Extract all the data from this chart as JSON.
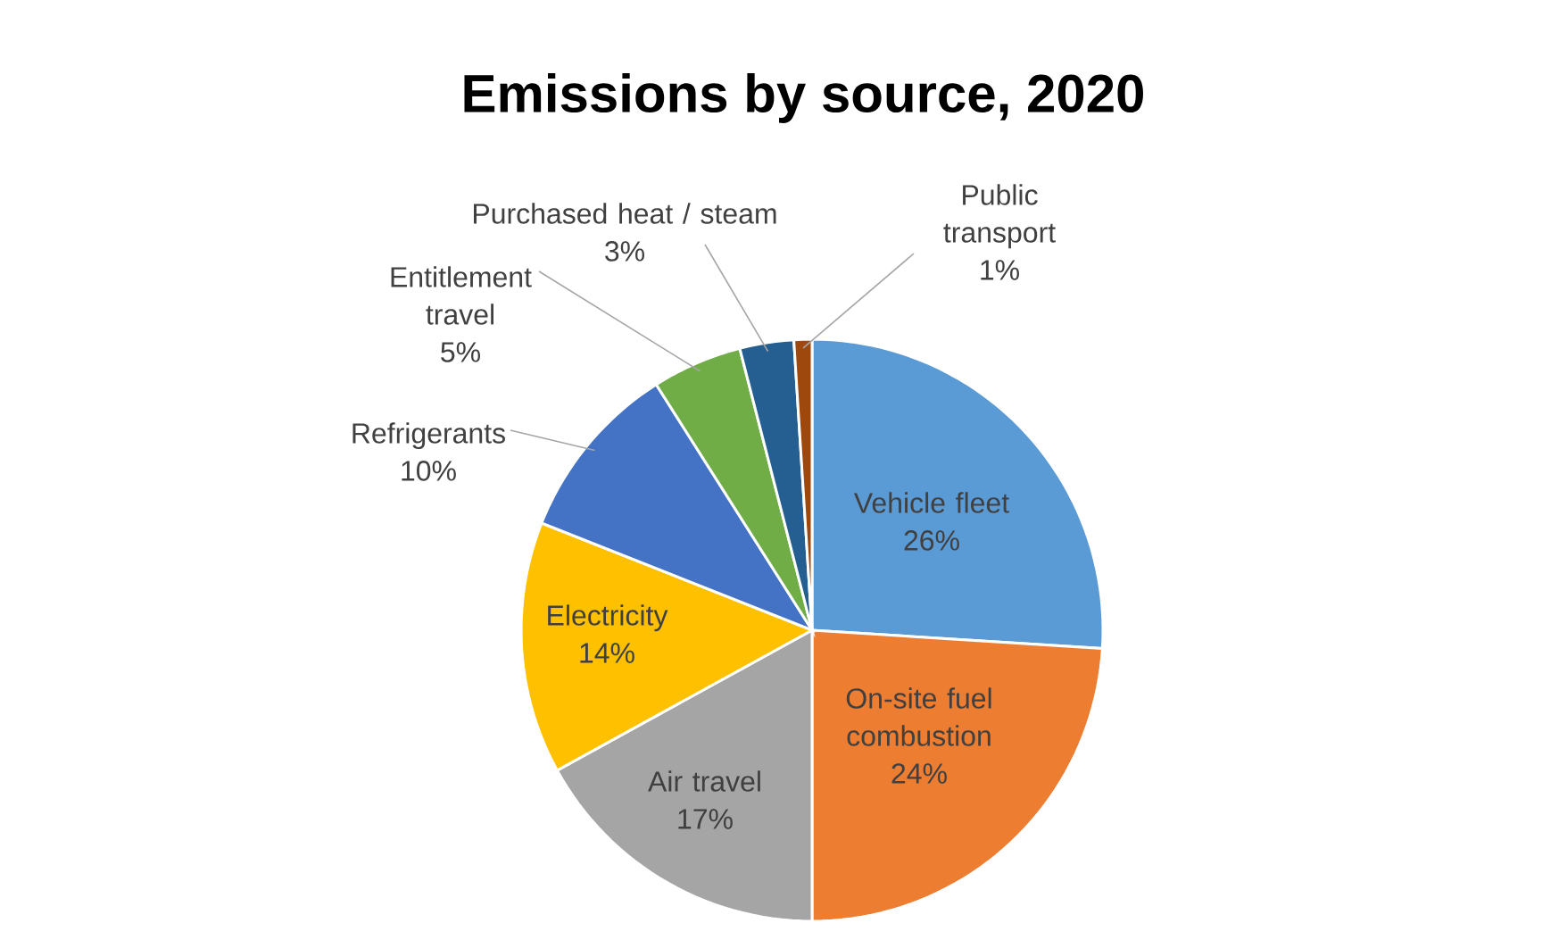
{
  "chart_data": {
    "type": "pie",
    "title": "Emissions by source, 2020",
    "categories": [
      "Vehicle fleet",
      "On-site fuel combustion",
      "Air travel",
      "Electricity",
      "Refrigerants",
      "Entitlement travel",
      "Purchased heat / steam",
      "Public transport"
    ],
    "values": [
      26,
      24,
      17,
      14,
      10,
      5,
      3,
      1
    ],
    "value_labels": [
      "26%",
      "24%",
      "17%",
      "14%",
      "10%",
      "5%",
      "3%",
      "1%"
    ],
    "colors": [
      "#5b9bd5",
      "#ed7d31",
      "#a5a5a5",
      "#ffc000",
      "#4472c4",
      "#70ad47",
      "#255e91",
      "#9e480e"
    ]
  }
}
